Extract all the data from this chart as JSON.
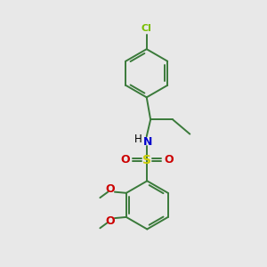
{
  "background_color": "#e8e8e8",
  "bond_color": "#3a7a3a",
  "cl_color": "#78be00",
  "n_color": "#0000cc",
  "s_color": "#cccc00",
  "o_color": "#cc0000",
  "text_color": "#000000",
  "figsize": [
    3.0,
    3.0
  ],
  "dpi": 100,
  "xlim": [
    0,
    10
  ],
  "ylim": [
    0,
    10
  ]
}
